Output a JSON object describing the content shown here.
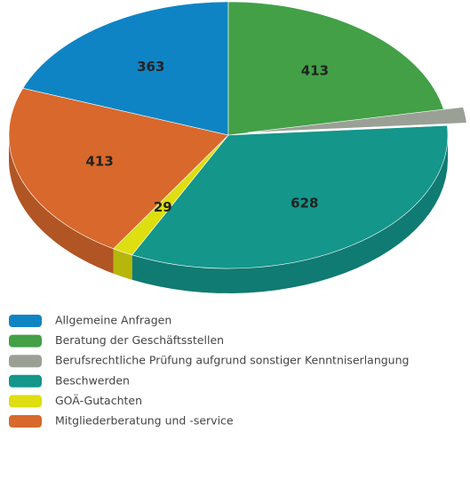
{
  "chart_data": {
    "type": "pie3d",
    "series": [
      {
        "name": "Allgemeine Anfragen",
        "color": "#0f84c4",
        "values": [
          363
        ]
      },
      {
        "name": "Beratung der Geschäftsstellen",
        "color": "#43a047",
        "values": [
          413
        ]
      },
      {
        "name": "Berufsrechtliche Prüfung aufgrund sonstiger Kenntniserlangung",
        "color": "#9aa096",
        "values": [
          36
        ],
        "exploded": true
      },
      {
        "name": "Beschwerden",
        "color": "#14968b",
        "values": [
          628
        ]
      },
      {
        "name": "GOÄ-Gutachten",
        "color": "#dede10",
        "values": [
          29
        ]
      },
      {
        "name": "Mitgliederberatung und -service",
        "color": "#d8682c",
        "values": [
          413
        ]
      }
    ],
    "legend": "bottom-left"
  }
}
